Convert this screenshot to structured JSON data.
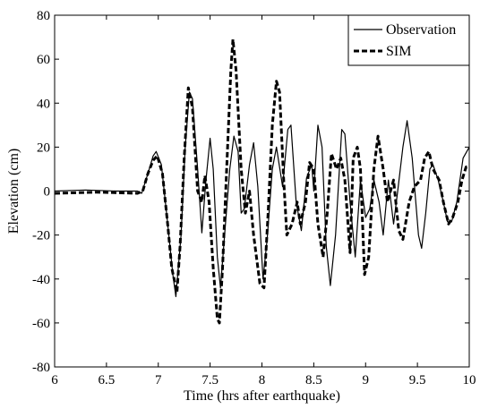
{
  "chart_data": {
    "type": "line",
    "xlabel": "Time (hrs after earthquake)",
    "ylabel": "Elevation (cm)",
    "xlim": [
      6,
      10
    ],
    "ylim": [
      -80,
      80
    ],
    "x_ticks": [
      "6",
      "6.5",
      "7",
      "7.5",
      "8",
      "8.5",
      "9",
      "9.5",
      "10"
    ],
    "y_ticks": [
      "80",
      "60",
      "40",
      "20",
      "0",
      "-20",
      "-40",
      "-60",
      "-80"
    ],
    "grid": false,
    "legend_position": "top-right",
    "series": [
      {
        "name": "Observation",
        "style": "solid",
        "color": "#000000",
        "points": [
          [
            6.0,
            0
          ],
          [
            6.3,
            0.5
          ],
          [
            6.6,
            0
          ],
          [
            6.8,
            0
          ],
          [
            6.84,
            -1
          ],
          [
            6.9,
            8
          ],
          [
            6.95,
            16
          ],
          [
            6.98,
            18
          ],
          [
            7.03,
            12
          ],
          [
            7.08,
            -10
          ],
          [
            7.14,
            -38
          ],
          [
            7.17,
            -48
          ],
          [
            7.22,
            -20
          ],
          [
            7.26,
            20
          ],
          [
            7.3,
            45
          ],
          [
            7.33,
            42
          ],
          [
            7.38,
            10
          ],
          [
            7.42,
            -19
          ],
          [
            7.46,
            5
          ],
          [
            7.5,
            24
          ],
          [
            7.53,
            10
          ],
          [
            7.57,
            -30
          ],
          [
            7.6,
            -44
          ],
          [
            7.64,
            -20
          ],
          [
            7.69,
            10
          ],
          [
            7.73,
            25
          ],
          [
            7.77,
            18
          ],
          [
            7.8,
            -10
          ],
          [
            7.83,
            -8
          ],
          [
            7.88,
            12
          ],
          [
            7.92,
            22
          ],
          [
            7.96,
            2
          ],
          [
            8.01,
            -40
          ],
          [
            8.05,
            -22
          ],
          [
            8.1,
            10
          ],
          [
            8.14,
            20
          ],
          [
            8.2,
            2
          ],
          [
            8.25,
            28
          ],
          [
            8.28,
            30
          ],
          [
            8.33,
            -5
          ],
          [
            8.38,
            -18
          ],
          [
            8.43,
            6
          ],
          [
            8.48,
            12
          ],
          [
            8.5,
            0
          ],
          [
            8.54,
            30
          ],
          [
            8.58,
            20
          ],
          [
            8.62,
            -25
          ],
          [
            8.66,
            -43
          ],
          [
            8.71,
            -20
          ],
          [
            8.77,
            28
          ],
          [
            8.8,
            26
          ],
          [
            8.85,
            -5
          ],
          [
            8.9,
            -30
          ],
          [
            8.95,
            5
          ],
          [
            9.0,
            -12
          ],
          [
            9.04,
            -8
          ],
          [
            9.08,
            5
          ],
          [
            9.13,
            -5
          ],
          [
            9.17,
            -20
          ],
          [
            9.22,
            5
          ],
          [
            9.27,
            -15
          ],
          [
            9.31,
            0
          ],
          [
            9.36,
            20
          ],
          [
            9.4,
            32
          ],
          [
            9.45,
            15
          ],
          [
            9.51,
            -20
          ],
          [
            9.54,
            -26
          ],
          [
            9.58,
            -10
          ],
          [
            9.62,
            10
          ],
          [
            9.65,
            12
          ],
          [
            9.7,
            5
          ],
          [
            9.75,
            -5
          ],
          [
            9.79,
            -14
          ],
          [
            9.83,
            -14
          ],
          [
            9.88,
            -5
          ],
          [
            9.94,
            15
          ],
          [
            10.0,
            20
          ]
        ]
      },
      {
        "name": "SIM",
        "style": "dashed",
        "color": "#000000",
        "points": [
          [
            6.0,
            -1
          ],
          [
            6.4,
            -0.5
          ],
          [
            6.8,
            -1
          ],
          [
            6.85,
            0
          ],
          [
            6.9,
            8
          ],
          [
            6.95,
            14
          ],
          [
            6.99,
            16
          ],
          [
            7.04,
            8
          ],
          [
            7.09,
            -15
          ],
          [
            7.13,
            -35
          ],
          [
            7.18,
            -46
          ],
          [
            7.21,
            -25
          ],
          [
            7.25,
            15
          ],
          [
            7.29,
            47
          ],
          [
            7.33,
            38
          ],
          [
            7.38,
            0
          ],
          [
            7.42,
            -5
          ],
          [
            7.45,
            7
          ],
          [
            7.49,
            -5
          ],
          [
            7.53,
            -35
          ],
          [
            7.57,
            -58
          ],
          [
            7.59,
            -60
          ],
          [
            7.62,
            -35
          ],
          [
            7.66,
            10
          ],
          [
            7.7,
            55
          ],
          [
            7.72,
            69
          ],
          [
            7.75,
            55
          ],
          [
            7.8,
            10
          ],
          [
            7.84,
            -10
          ],
          [
            7.88,
            0
          ],
          [
            7.92,
            -20
          ],
          [
            7.98,
            -42
          ],
          [
            8.02,
            -44
          ],
          [
            8.06,
            -10
          ],
          [
            8.1,
            30
          ],
          [
            8.14,
            50
          ],
          [
            8.17,
            45
          ],
          [
            8.21,
            5
          ],
          [
            8.24,
            -20
          ],
          [
            8.29,
            -15
          ],
          [
            8.34,
            -5
          ],
          [
            8.37,
            -15
          ],
          [
            8.42,
            -5
          ],
          [
            8.46,
            13
          ],
          [
            8.5,
            10
          ],
          [
            8.54,
            -15
          ],
          [
            8.59,
            -30
          ],
          [
            8.63,
            -10
          ],
          [
            8.67,
            17
          ],
          [
            8.72,
            10
          ],
          [
            8.76,
            15
          ],
          [
            8.8,
            5
          ],
          [
            8.85,
            -28
          ],
          [
            8.88,
            15
          ],
          [
            8.92,
            20
          ],
          [
            8.95,
            10
          ],
          [
            8.99,
            -38
          ],
          [
            9.03,
            -30
          ],
          [
            9.08,
            10
          ],
          [
            9.12,
            25
          ],
          [
            9.17,
            10
          ],
          [
            9.21,
            -5
          ],
          [
            9.27,
            5
          ],
          [
            9.32,
            -18
          ],
          [
            9.36,
            -22
          ],
          [
            9.42,
            -5
          ],
          [
            9.47,
            2
          ],
          [
            9.53,
            5
          ],
          [
            9.57,
            15
          ],
          [
            9.61,
            18
          ],
          [
            9.65,
            10
          ],
          [
            9.71,
            5
          ],
          [
            9.75,
            -5
          ],
          [
            9.8,
            -15
          ],
          [
            9.84,
            -12
          ],
          [
            9.89,
            -5
          ],
          [
            9.93,
            5
          ],
          [
            9.97,
            11
          ],
          [
            10.0,
            11
          ]
        ]
      }
    ]
  }
}
